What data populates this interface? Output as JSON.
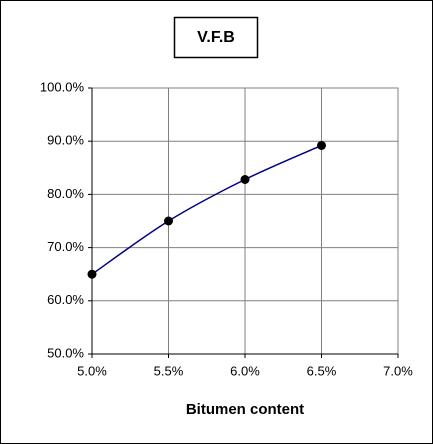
{
  "chart_data": {
    "type": "line",
    "title": "V.F.B",
    "x_label": "Bitumen content",
    "x": [
      5.0,
      5.5,
      6.0,
      6.5
    ],
    "series": [
      {
        "name": "V.F.B",
        "color": "#000080",
        "marker_color": "#000000",
        "values": [
          65.0,
          75.0,
          82.8,
          89.2
        ]
      }
    ],
    "xlim": [
      5.0,
      7.0
    ],
    "xticks": [
      {
        "value": 5.0,
        "label": "5.0%"
      },
      {
        "value": 5.5,
        "label": "5.5%"
      },
      {
        "value": 6.0,
        "label": "6.0%"
      },
      {
        "value": 6.5,
        "label": "6.5%"
      },
      {
        "value": 7.0,
        "label": "7.0%"
      }
    ],
    "ylim": [
      50,
      100
    ],
    "yticks": [
      {
        "value": 50,
        "label": "50.0%"
      },
      {
        "value": 60,
        "label": "60.0%"
      },
      {
        "value": 70,
        "label": "70.0%"
      },
      {
        "value": 80,
        "label": "80.0%"
      },
      {
        "value": 90,
        "label": "90.0%"
      },
      {
        "value": 100,
        "label": "100.0%"
      }
    ],
    "grid": true,
    "smooth": true
  }
}
